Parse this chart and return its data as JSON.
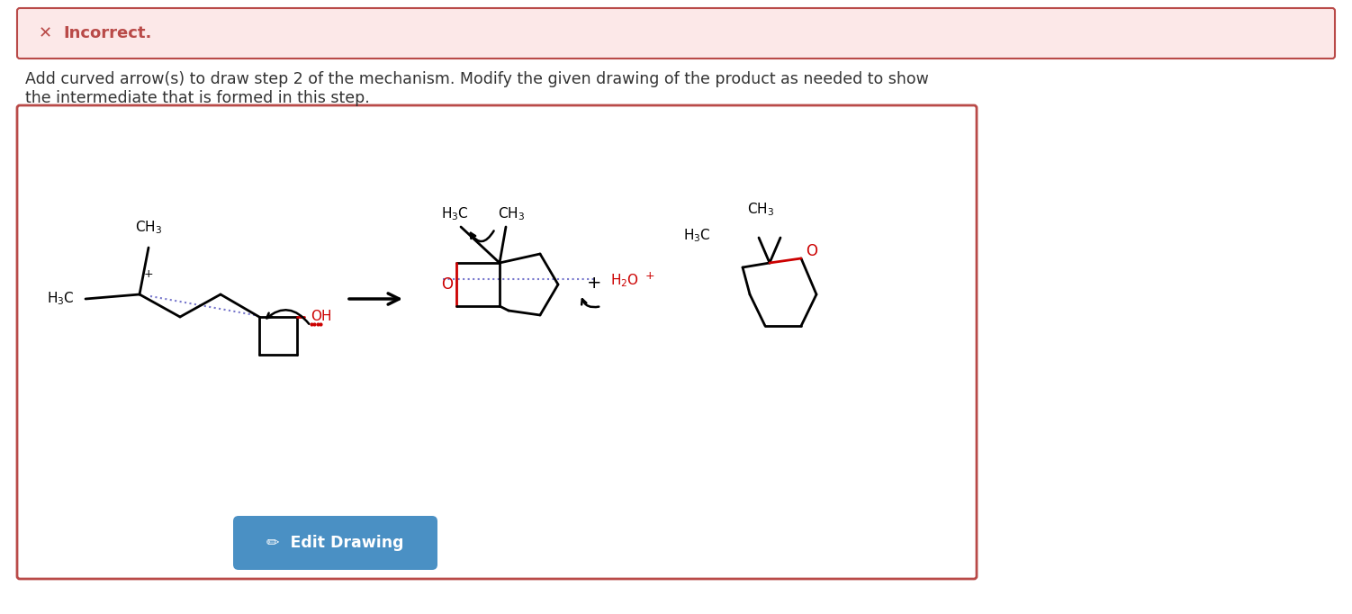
{
  "bg_color": "#ffffff",
  "error_box_color": "#fce8e8",
  "error_box_border": "#b94a48",
  "error_x_color": "#b94a48",
  "inner_box_border": "#b94a48",
  "inner_box_bg": "#ffffff",
  "button_color": "#4a90c4",
  "button_text": "Edit Drawing",
  "text_color": "#333333",
  "red_color": "#cc0000",
  "blue_dotted_color": "#7777cc",
  "black": "#111111",
  "instruction1": "Add curved arrow(s) to draw step 2 of the mechanism. Modify the given drawing of the product as needed to show",
  "instruction2": "the intermediate that is formed in this step."
}
